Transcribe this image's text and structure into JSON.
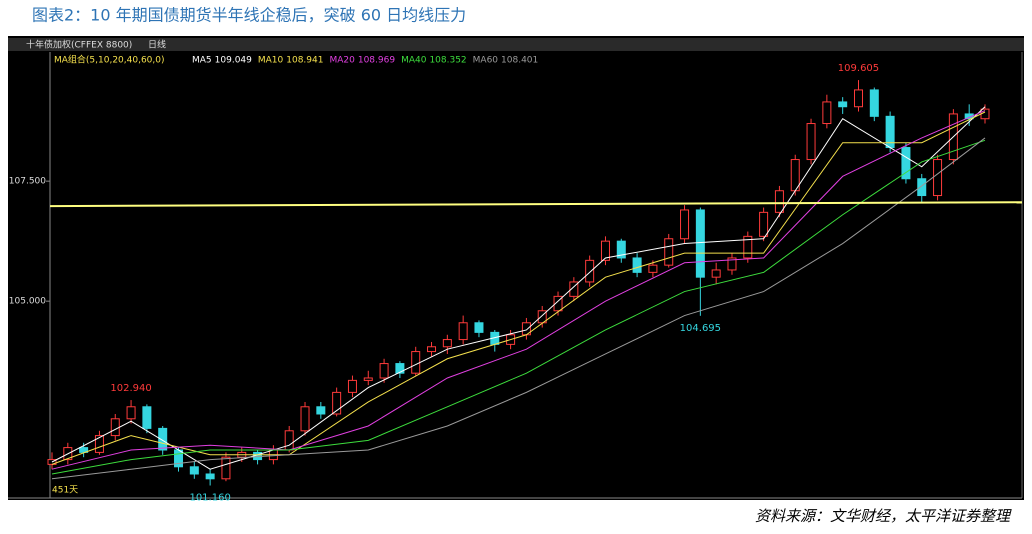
{
  "title": "图表2：10 年期国债期货半年线企稳后，突破 60 日均线压力",
  "source": "资料来源：文华财经，太平洋证券整理",
  "chart_data": {
    "type": "candlestick",
    "instrument": "十年债加权(CFFEX 8800)",
    "period": "日线",
    "ma_group": "MA组合(5,10,20,40,60,0)",
    "days_label": "451天",
    "ylim": [
      100.9,
      110.19
    ],
    "yticks": [
      {
        "value": 105,
        "label": "105.000"
      },
      {
        "value": 107.5,
        "label": "107.500"
      }
    ],
    "up_color": "#ff3b3b",
    "down_color": "#35d6e0",
    "ohlc": [
      [
        101.6,
        101.85,
        101.5,
        101.7
      ],
      [
        101.7,
        102.05,
        101.6,
        101.95
      ],
      [
        101.95,
        102.05,
        101.75,
        101.85
      ],
      [
        101.85,
        102.3,
        101.8,
        102.2
      ],
      [
        102.2,
        102.65,
        102.1,
        102.55
      ],
      [
        102.55,
        102.94,
        102.45,
        102.8
      ],
      [
        102.8,
        102.85,
        102.25,
        102.35
      ],
      [
        102.35,
        102.4,
        101.8,
        101.9
      ],
      [
        101.9,
        101.95,
        101.45,
        101.55
      ],
      [
        101.55,
        101.65,
        101.3,
        101.4
      ],
      [
        101.4,
        101.5,
        101.16,
        101.3
      ],
      [
        101.3,
        101.85,
        101.25,
        101.75
      ],
      [
        101.75,
        101.95,
        101.65,
        101.85
      ],
      [
        101.85,
        101.9,
        101.6,
        101.7
      ],
      [
        101.7,
        102.0,
        101.6,
        101.9
      ],
      [
        101.9,
        102.4,
        101.85,
        102.3
      ],
      [
        102.3,
        102.9,
        102.2,
        102.8
      ],
      [
        102.8,
        102.9,
        102.55,
        102.65
      ],
      [
        102.65,
        103.2,
        102.6,
        103.1
      ],
      [
        103.1,
        103.45,
        103.0,
        103.35
      ],
      [
        103.35,
        103.55,
        103.25,
        103.4
      ],
      [
        103.4,
        103.8,
        103.3,
        103.7
      ],
      [
        103.7,
        103.75,
        103.4,
        103.5
      ],
      [
        103.5,
        104.05,
        103.45,
        103.95
      ],
      [
        103.95,
        104.15,
        103.85,
        104.05
      ],
      [
        104.05,
        104.3,
        103.9,
        104.2
      ],
      [
        104.2,
        104.7,
        104.1,
        104.55
      ],
      [
        104.55,
        104.6,
        104.25,
        104.35
      ],
      [
        104.35,
        104.4,
        103.95,
        104.1
      ],
      [
        104.1,
        104.4,
        104.0,
        104.3
      ],
      [
        104.3,
        104.65,
        104.2,
        104.55
      ],
      [
        104.55,
        104.9,
        104.45,
        104.8
      ],
      [
        104.8,
        105.2,
        104.7,
        105.1
      ],
      [
        105.1,
        105.5,
        105.0,
        105.4
      ],
      [
        105.4,
        105.95,
        105.3,
        105.85
      ],
      [
        105.85,
        106.35,
        105.75,
        106.25
      ],
      [
        106.25,
        106.3,
        105.8,
        105.9
      ],
      [
        105.9,
        106.0,
        105.5,
        105.6
      ],
      [
        105.6,
        105.85,
        105.5,
        105.75
      ],
      [
        105.75,
        106.4,
        105.7,
        106.3
      ],
      [
        106.3,
        107.0,
        106.2,
        106.9
      ],
      [
        106.9,
        106.95,
        104.695,
        105.5
      ],
      [
        105.5,
        105.8,
        105.35,
        105.65
      ],
      [
        105.65,
        106.0,
        105.55,
        105.9
      ],
      [
        105.9,
        106.45,
        105.8,
        106.35
      ],
      [
        106.35,
        106.95,
        106.25,
        106.85
      ],
      [
        106.85,
        107.4,
        106.75,
        107.3
      ],
      [
        107.3,
        108.05,
        107.2,
        107.95
      ],
      [
        107.95,
        108.8,
        107.85,
        108.7
      ],
      [
        108.7,
        109.3,
        108.6,
        109.15
      ],
      [
        109.15,
        109.25,
        108.9,
        109.05
      ],
      [
        109.05,
        109.605,
        108.95,
        109.4
      ],
      [
        109.4,
        109.45,
        108.75,
        108.85
      ],
      [
        108.85,
        108.95,
        108.1,
        108.2
      ],
      [
        108.2,
        108.3,
        107.45,
        107.55
      ],
      [
        107.55,
        107.65,
        107.05,
        107.2
      ],
      [
        107.2,
        108.05,
        107.1,
        107.95
      ],
      [
        107.95,
        109.0,
        107.85,
        108.9
      ],
      [
        108.9,
        109.1,
        108.65,
        108.8
      ],
      [
        108.8,
        109.1,
        108.7,
        109.0
      ]
    ],
    "ma_x": [
      0,
      5,
      10,
      15,
      20,
      25,
      30,
      35,
      40,
      45,
      50,
      55,
      59
    ],
    "ma": [
      {
        "name": "MA5",
        "last": 109.049,
        "color": "#ffffff",
        "values": [
          101.65,
          102.5,
          101.5,
          102.0,
          103.2,
          104.0,
          104.4,
          105.9,
          106.2,
          106.3,
          108.8,
          107.8,
          109.05
        ]
      },
      {
        "name": "MA10",
        "last": 108.941,
        "color": "#f4e04d",
        "values": [
          101.6,
          102.2,
          101.8,
          101.8,
          102.9,
          103.8,
          104.3,
          105.5,
          106.0,
          106.0,
          108.3,
          108.3,
          108.94
        ]
      },
      {
        "name": "MA20",
        "last": 108.969,
        "color": "#e040e0",
        "values": [
          101.5,
          101.9,
          102.0,
          101.9,
          102.4,
          103.4,
          104.0,
          105.0,
          105.8,
          105.9,
          107.6,
          108.4,
          108.97
        ]
      },
      {
        "name": "MA40",
        "last": 108.352,
        "color": "#3ddc3d",
        "values": [
          101.4,
          101.7,
          101.9,
          101.9,
          102.1,
          102.8,
          103.5,
          104.4,
          105.2,
          105.6,
          106.8,
          107.9,
          108.35
        ]
      },
      {
        "name": "MA60",
        "last": 108.401,
        "color": "#9a9a9a",
        "values": [
          101.3,
          101.5,
          101.7,
          101.8,
          101.9,
          102.4,
          103.1,
          103.9,
          104.7,
          105.2,
          106.2,
          107.4,
          108.4
        ]
      }
    ],
    "hline": {
      "values": [
        106.98,
        107.06
      ],
      "color": "#ffff80"
    },
    "annotations": [
      {
        "label": "102.940",
        "value": 102.94,
        "index": 5,
        "side": "above",
        "color": "#ff3b3b"
      },
      {
        "label": "101.160",
        "value": 101.16,
        "index": 10,
        "side": "below",
        "color": "#35d6e0"
      },
      {
        "label": "104.695",
        "value": 104.695,
        "index": 41,
        "side": "below",
        "color": "#35d6e0"
      },
      {
        "label": "109.605",
        "value": 109.605,
        "index": 51,
        "side": "above",
        "color": "#ff3b3b"
      }
    ]
  }
}
